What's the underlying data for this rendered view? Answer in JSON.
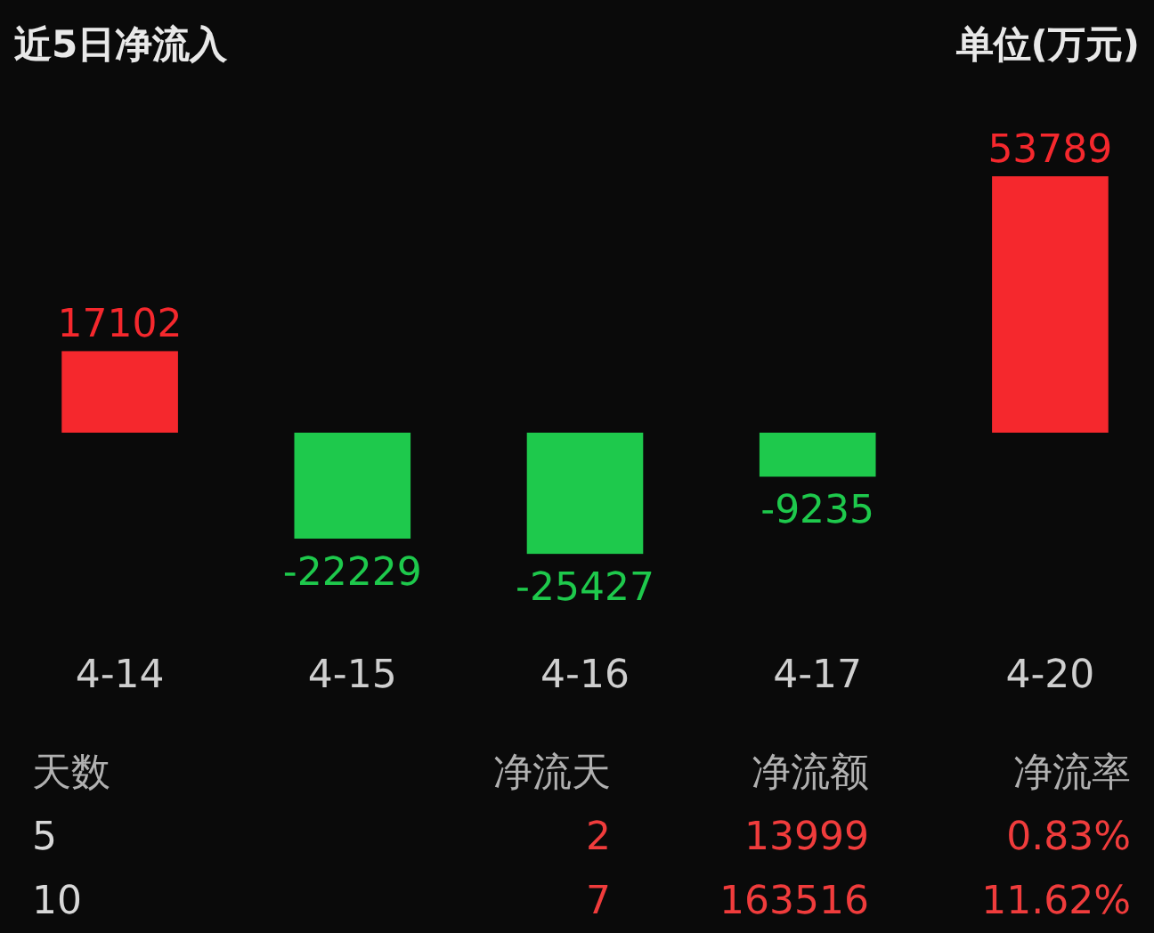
{
  "chart_data": {
    "type": "bar",
    "title": "近5日净流入",
    "subtitle": "单位(万元)",
    "categories": [
      "4-14",
      "4-15",
      "4-16",
      "4-17",
      "4-20"
    ],
    "values": [
      17102,
      -22229,
      -25427,
      -9235,
      53789
    ],
    "colors": [
      "#f5282d",
      "#1ec94c",
      "#1ec94c",
      "#1ec94c",
      "#f5282d"
    ],
    "data_labels": true,
    "annotations": [
      "天数",
      "净流天",
      "净流额",
      "净流率",
      "5",
      "2",
      "13999",
      "0.83%",
      "10",
      "7",
      "163516",
      "11.62%"
    ]
  }
}
